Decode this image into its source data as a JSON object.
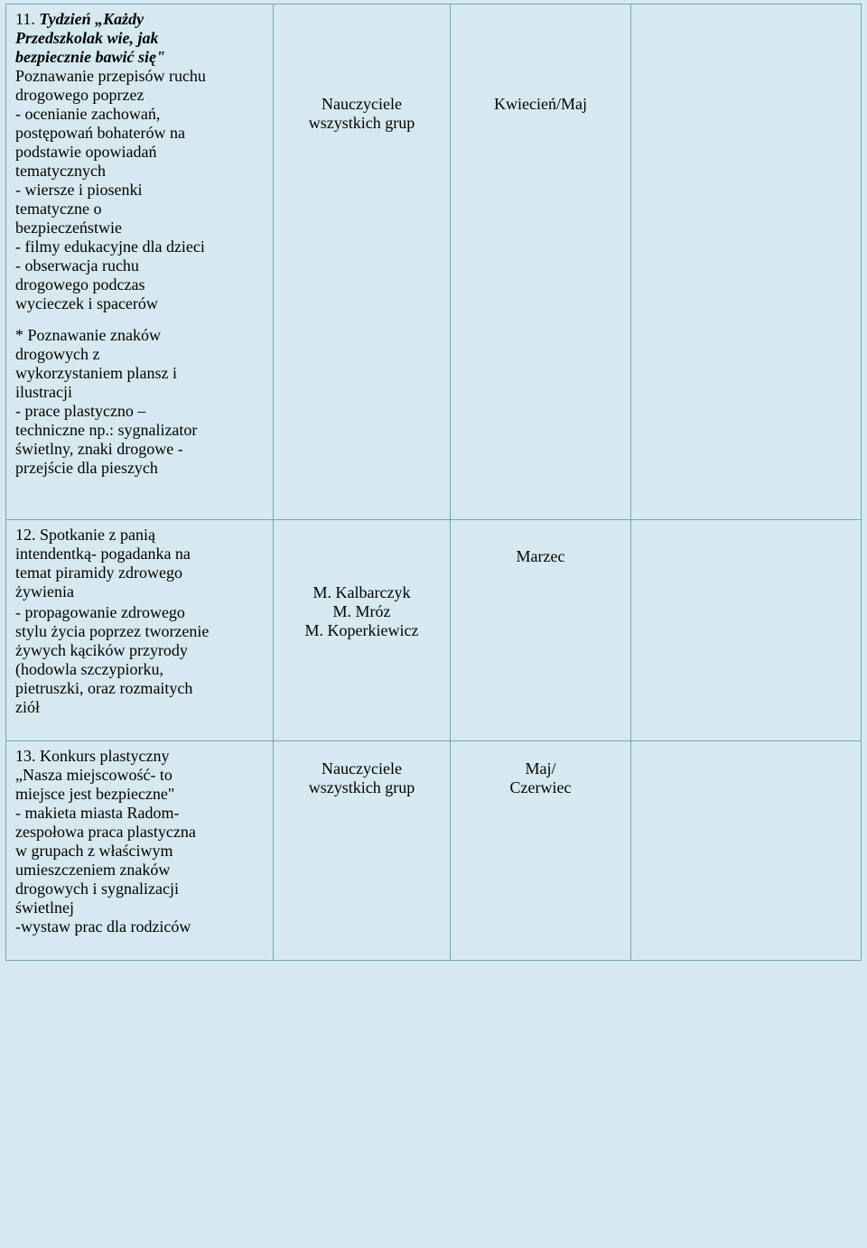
{
  "row1": {
    "title_line1": "11. Tydzień „Każdy",
    "title_line2": "Przedszkolak wie, jak",
    "title_line3": "bezpiecznie bawić się\"",
    "p1_l1": "Poznawanie przepisów ruchu",
    "p1_l2": "drogowego poprzez",
    "p1_l3": "- ocenianie zachowań,",
    "p1_l4": "postępowań bohaterów na",
    "p1_l5": "podstawie opowiadań",
    "p1_l6": "tematycznych",
    "p1_l7": "- wiersze i piosenki",
    "p1_l8": "tematyczne o",
    "p1_l9": "bezpieczeństwie",
    "p1_l10": "- filmy edukacyjne dla dzieci",
    "p1_l11": "- obserwacja ruchu",
    "p1_l12": "drogowego podczas",
    "p1_l13": "wycieczek i spacerów",
    "p2_l1": "* Poznawanie znaków",
    "p2_l2": "drogowych z",
    "p2_l3": "wykorzystaniem plansz i",
    "p2_l4": "ilustracji",
    "p2_l5": "- prace plastyczno –",
    "p2_l6": "techniczne np.: sygnalizator",
    "p2_l7": "świetlny, znaki drogowe -",
    "p2_l8": "przejście dla pieszych",
    "who_l1": "Nauczyciele",
    "who_l2": "wszystkich grup",
    "when": "Kwiecień/Maj"
  },
  "row2": {
    "p1_l1": "12. Spotkanie z panią",
    "p1_l2": "intendentką- pogadanka na",
    "p1_l3": "temat piramidy zdrowego",
    "p1_l4": "żywienia",
    "p2_l1": " - propagowanie zdrowego",
    "p2_l2": "stylu życia poprzez tworzenie",
    "p2_l3": "żywych kącików przyrody",
    "p2_l4": "(hodowla szczypiorku,",
    "p2_l5": "pietruszki, oraz rozmaitych",
    "p2_l6": "ziół",
    "who_l1": "M. Kalbarczyk",
    "who_l2": "M. Mróz",
    "who_l3": "M. Koperkiewicz",
    "when": "Marzec"
  },
  "row3": {
    "p1_l1": "13. Konkurs plastyczny",
    "p1_l2": "„Nasza miejscowość- to",
    "p1_l3": "miejsce jest bezpieczne\"",
    "p1_l4": "- makieta miasta Radom-",
    "p1_l5": "zespołowa praca plastyczna",
    "p1_l6": "w grupach z właściwym",
    "p1_l7": "umieszczeniem znaków",
    "p1_l8": "drogowych i sygnalizacji",
    "p1_l9": "świetlnej",
    "p1_l10": "-wystaw prac dla rodziców",
    "who_l1": "Nauczyciele",
    "who_l2": "wszystkich grup",
    "when_l1": "Maj/",
    "when_l2": "Czerwiec"
  }
}
